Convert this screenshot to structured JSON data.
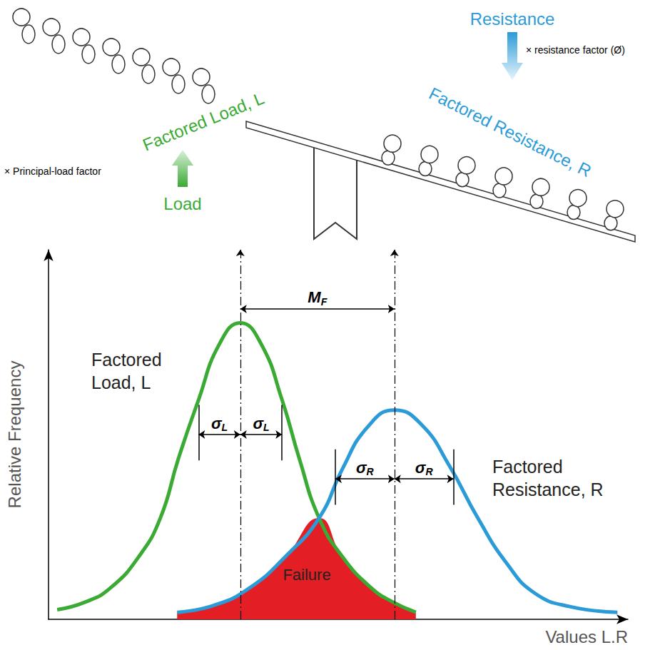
{
  "cartoon": {
    "load": {
      "label": "Load",
      "factor": "× Principal-load factor",
      "factored": "Factored Load, L",
      "color": "#3aaa35"
    },
    "resistance": {
      "label": "Resistance",
      "factor": "× resistance factor (Ø)",
      "factored": "Factored Resistance, R",
      "color": "#2b9bd8"
    }
  },
  "chart_data": {
    "type": "line",
    "xlabel": "Values L.R",
    "ylabel": "Relative Frequency",
    "xlim": [
      0,
      100
    ],
    "ylim": [
      0,
      100
    ],
    "tick_labels": false,
    "grid": false,
    "series": [
      {
        "name": "Factored Load, L",
        "color": "#3aaa35",
        "x": [
          1.5,
          6.4,
          10.7,
          15.6,
          19.3,
          22.4,
          25.9,
          29.5,
          33.1,
          36.7,
          40.3,
          43.3,
          46.7,
          50.7,
          55.7,
          59.4,
          63.4
        ],
        "values": [
          2.6,
          4.7,
          8.5,
          17.0,
          27.4,
          43.4,
          59.4,
          74.5,
          80.2,
          74.5,
          59.4,
          43.4,
          27.4,
          17.0,
          8.5,
          4.7,
          1.9
        ],
        "mean": 33.1,
        "sigma": 7.2,
        "sigma_label": {
          "symbol": "σ",
          "subscript": "L"
        }
      },
      {
        "name": "Factored Resistance, R",
        "color": "#2b9bd8",
        "x": [
          22.2,
          28.6,
          34.7,
          40.9,
          46.7,
          50.7,
          55.0,
          59.7,
          64.3,
          69.2,
          74.1,
          79.1,
          84.0,
          90.1,
          98.2
        ],
        "values": [
          1.9,
          3.8,
          8.5,
          17.0,
          27.4,
          40.6,
          51.9,
          56.6,
          52.8,
          41.5,
          27.4,
          15.1,
          7.0,
          3.4,
          1.9
        ],
        "mean": 59.7,
        "sigma": 10.2,
        "sigma_label": {
          "symbol": "σ",
          "subscript": "R"
        }
      }
    ],
    "failure": {
      "label": "Failure",
      "color": "#e31e24",
      "x": [
        22.2,
        28.6,
        34.7,
        40.9,
        46.7,
        50.7,
        55.7,
        59.4,
        63.4
      ],
      "values": [
        1.9,
        3.8,
        8.5,
        17.0,
        27.4,
        17.0,
        8.5,
        4.7,
        1.9
      ]
    },
    "margin": {
      "symbol": "M",
      "subscript": "F",
      "value": 26.6
    }
  }
}
